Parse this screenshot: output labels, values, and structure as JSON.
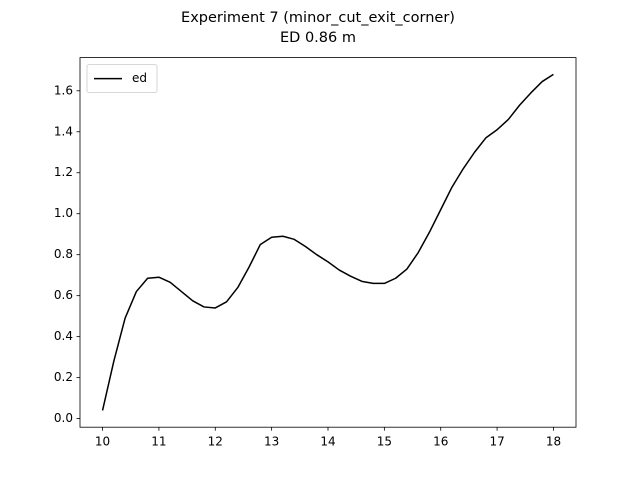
{
  "chart_data": {
    "type": "line",
    "title": "Experiment 7 (minor_cut_exit_corner)",
    "subtitle": "ED 0.86 m",
    "x": [
      10.0,
      10.2,
      10.4,
      10.6,
      10.8,
      11.0,
      11.2,
      11.4,
      11.6,
      11.8,
      12.0,
      12.2,
      12.4,
      12.6,
      12.8,
      13.0,
      13.2,
      13.4,
      13.6,
      13.8,
      14.0,
      14.2,
      14.4,
      14.6,
      14.8,
      15.0,
      15.2,
      15.4,
      15.6,
      15.8,
      16.0,
      16.2,
      16.4,
      16.6,
      16.8,
      17.0,
      17.2,
      17.4,
      17.6,
      17.8,
      18.0
    ],
    "series": [
      {
        "name": "ed",
        "color": "#000000",
        "values": [
          0.04,
          0.28,
          0.49,
          0.62,
          0.685,
          0.69,
          0.665,
          0.62,
          0.575,
          0.545,
          0.54,
          0.57,
          0.64,
          0.74,
          0.85,
          0.885,
          0.89,
          0.875,
          0.84,
          0.8,
          0.765,
          0.725,
          0.695,
          0.67,
          0.66,
          0.66,
          0.685,
          0.73,
          0.81,
          0.91,
          1.02,
          1.13,
          1.22,
          1.3,
          1.37,
          1.41,
          1.46,
          1.53,
          1.59,
          1.645,
          1.68
        ]
      }
    ],
    "xlim": [
      9.6,
      18.4
    ],
    "xticks": [
      10,
      11,
      12,
      13,
      14,
      15,
      16,
      17,
      18
    ],
    "ylim": [
      -0.042,
      1.762
    ],
    "yticks": [
      {
        "value": 0,
        "label": "0.0"
      },
      {
        "value": 0.2,
        "label": "0.2"
      },
      {
        "value": 0.4,
        "label": "0.4"
      },
      {
        "value": 0.6,
        "label": "0.6"
      },
      {
        "value": 0.8,
        "label": "0.8"
      },
      {
        "value": 1,
        "label": "1.0"
      },
      {
        "value": 1.2,
        "label": "1.2"
      },
      {
        "value": 1.4,
        "label": "1.4"
      },
      {
        "value": 1.6,
        "label": "1.6"
      }
    ],
    "legend": "upper left",
    "grid": false
  }
}
